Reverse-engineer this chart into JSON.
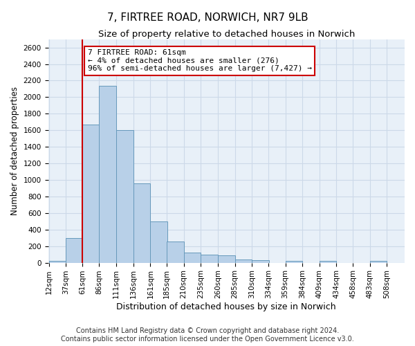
{
  "title1": "7, FIRTREE ROAD, NORWICH, NR7 9LB",
  "title2": "Size of property relative to detached houses in Norwich",
  "xlabel": "Distribution of detached houses by size in Norwich",
  "ylabel": "Number of detached properties",
  "bins": [
    12,
    37,
    61,
    86,
    111,
    136,
    161,
    185,
    210,
    235,
    260,
    285,
    310,
    334,
    359,
    384,
    409,
    434,
    458,
    483,
    508
  ],
  "values": [
    25,
    300,
    1670,
    2140,
    1600,
    960,
    500,
    255,
    125,
    100,
    90,
    40,
    30,
    0,
    20,
    0,
    20,
    0,
    0,
    20,
    0
  ],
  "bar_color": "#b8d0e8",
  "bar_edge_color": "#6699bb",
  "property_size": 61,
  "annotation_text": "7 FIRTREE ROAD: 61sqm\n← 4% of detached houses are smaller (276)\n96% of semi-detached houses are larger (7,427) →",
  "annotation_box_color": "white",
  "annotation_box_edge_color": "#cc0000",
  "vline_color": "#cc0000",
  "ylim": [
    0,
    2700
  ],
  "yticks": [
    0,
    200,
    400,
    600,
    800,
    1000,
    1200,
    1400,
    1600,
    1800,
    2000,
    2200,
    2400,
    2600
  ],
  "grid_color": "#ccd9e8",
  "background_color": "#e8f0f8",
  "footer1": "Contains HM Land Registry data © Crown copyright and database right 2024.",
  "footer2": "Contains public sector information licensed under the Open Government Licence v3.0.",
  "title1_fontsize": 11,
  "title2_fontsize": 9.5,
  "xlabel_fontsize": 9,
  "ylabel_fontsize": 8.5,
  "tick_fontsize": 7.5,
  "footer_fontsize": 7,
  "annot_fontsize": 8
}
